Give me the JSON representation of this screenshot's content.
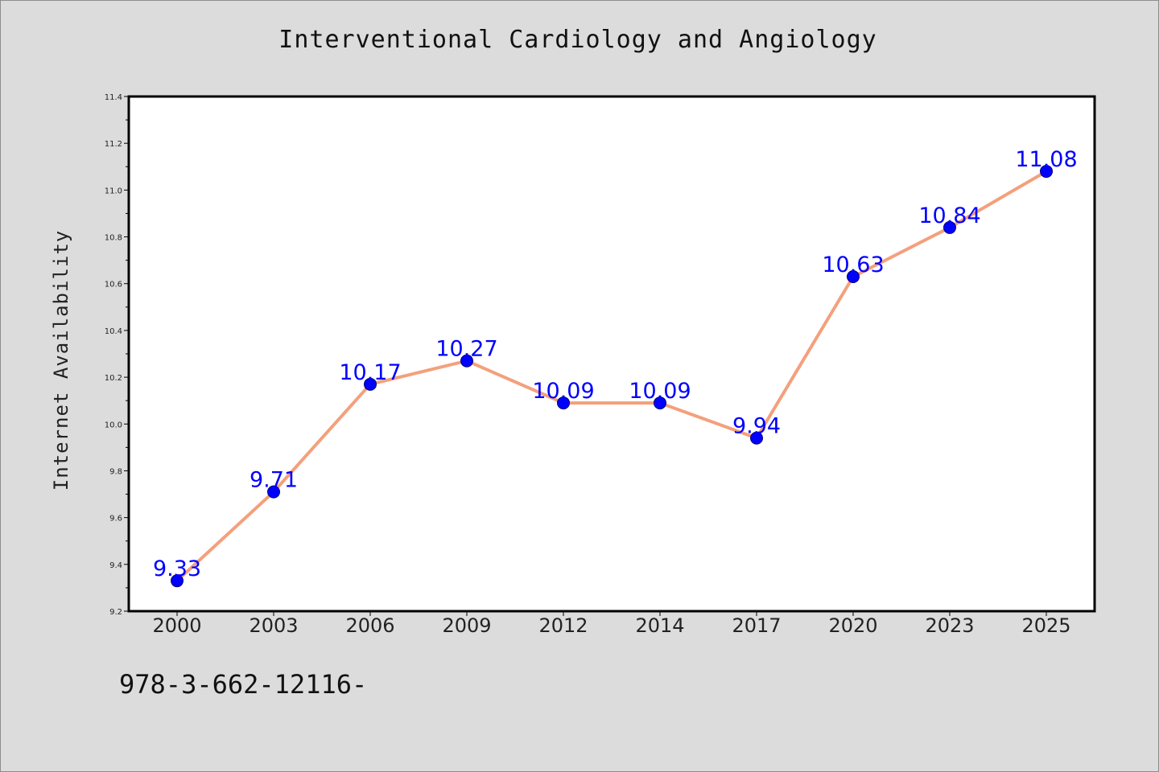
{
  "chart_data": {
    "type": "line",
    "title": "Interventional Cardiology and Angiology",
    "xlabel": "",
    "ylabel": "Internet Availability",
    "categories": [
      "2000",
      "2003",
      "2006",
      "2009",
      "2012",
      "2014",
      "2017",
      "2020",
      "2023",
      "2025"
    ],
    "series": [
      {
        "values": [
          9.33,
          9.71,
          10.17,
          10.27,
          10.09,
          10.09,
          9.94,
          10.63,
          10.84,
          11.08
        ],
        "data_labels": [
          "9.33",
          "9.71",
          "10.17",
          "10.27",
          "10.09",
          "10.09",
          "9.94",
          "10.63",
          "10.84",
          "11.08"
        ],
        "line_color": "#f4a07c",
        "marker_color": "#0000ff"
      }
    ],
    "ylim": [
      9.2,
      11.4
    ],
    "yticks": [
      "9.2",
      "9.4",
      "9.6",
      "9.8",
      "10.0",
      "10.2",
      "10.4",
      "10.6",
      "10.8",
      "11.0",
      "11.2",
      "11.4"
    ],
    "grid": false,
    "background": "#dcdcdc",
    "plot_background": "#ffffff"
  },
  "footer": {
    "code": "978-3-662-12116-"
  }
}
